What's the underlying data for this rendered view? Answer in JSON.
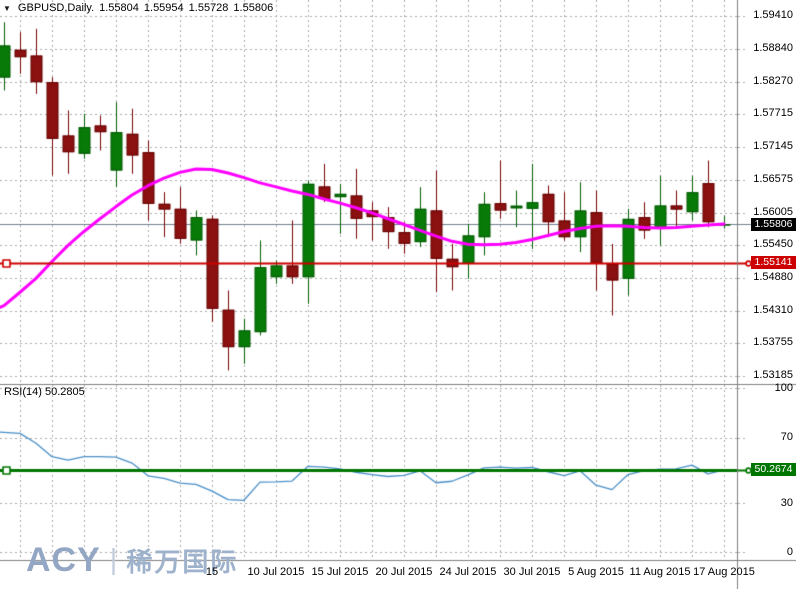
{
  "header": {
    "collapse_icon": "down-triangle",
    "symbol": "GBPUSD,Daily.",
    "open": "1.55804",
    "high": "1.55954",
    "low": "1.55728",
    "close": "1.55806"
  },
  "price_axis": {
    "labels": [
      "1.59410",
      "1.58840",
      "1.58270",
      "1.57715",
      "1.57145",
      "1.56575",
      "1.56005",
      "1.55450",
      "1.54880",
      "1.54310",
      "1.53755",
      "1.53185"
    ],
    "current_price_label": "1.55806",
    "hline_label": "1.55141"
  },
  "rsi_axis": {
    "labels": [
      "100",
      "70",
      "30",
      "0"
    ]
  },
  "time_axis": {
    "labels": [
      "15",
      "10 Jul 2015",
      "15 Jul 2015",
      "20 Jul 2015",
      "24 Jul 2015",
      "30 Jul 2015",
      "5 Aug 2015",
      "11 Aug 2015",
      "17 Aug 2015"
    ]
  },
  "rsi_panel": {
    "title": "RSI(14) 50.2805",
    "level_label": "50.2674"
  },
  "logo": {
    "brand": "ACY",
    "separator": "|",
    "name_cn": "稀万国际"
  },
  "colors": {
    "bull_body": "#077A07",
    "bull_border": "#045804",
    "bull_wick": "#045F04",
    "bear_body": "#8B1010",
    "bear_border": "#640000",
    "bear_wick": "#7A0404",
    "ma_line": "#FF00FF",
    "hline_red": "#CC0000",
    "current_price_line": "#708090",
    "rsi_line": "#4A90C8",
    "rsi_level_green": "#007500",
    "grid": "#ABABAB",
    "separator": "#808080"
  },
  "chart_data": [
    {
      "type": "candlestick",
      "title": "GBPUSD,Daily.",
      "ohlc_display": {
        "open": 1.55804,
        "high": 1.55954,
        "low": 1.55728,
        "close": 1.55806
      },
      "ylim": [
        1.53036,
        1.59669
      ],
      "y_ticks": [
        1.5941,
        1.5884,
        1.5827,
        1.57715,
        1.57145,
        1.56575,
        1.56005,
        1.5545,
        1.5488,
        1.5431,
        1.53755,
        1.53185
      ],
      "x_tick_labels": [
        "15",
        "10 Jul 2015",
        "15 Jul 2015",
        "20 Jul 2015",
        "24 Jul 2015",
        "30 Jul 2015",
        "5 Aug 2015",
        "11 Aug 2015",
        "17 Aug 2015"
      ],
      "x_tick_indices": [
        13,
        17,
        21,
        25,
        29,
        33,
        37,
        41,
        45
      ],
      "candles": [
        [
          1.58339,
          1.59294,
          1.58115,
          1.58892
        ],
        [
          1.58818,
          1.59122,
          1.58403,
          1.5869
        ],
        [
          1.58718,
          1.5918,
          1.58057,
          1.58258
        ],
        [
          1.58258,
          1.58344,
          1.56647,
          1.5728
        ],
        [
          1.57337,
          1.5777,
          1.56676,
          1.57049
        ],
        [
          1.57022,
          1.57712,
          1.56936,
          1.57481
        ],
        [
          1.5751,
          1.57683,
          1.57079,
          1.57395
        ],
        [
          1.56733,
          1.57912,
          1.56445,
          1.57395
        ],
        [
          1.57367,
          1.57799,
          1.56676,
          1.56993
        ],
        [
          1.57049,
          1.57251,
          1.5587,
          1.56158
        ],
        [
          1.56158,
          1.5636,
          1.55583,
          1.5606
        ],
        [
          1.56072,
          1.56446,
          1.55468,
          1.55554
        ],
        [
          1.55525,
          1.56043,
          1.55266,
          1.55928
        ],
        [
          1.55899,
          1.55957,
          1.54114,
          1.54345
        ],
        [
          1.54328,
          1.54661,
          1.5328,
          1.53682
        ],
        [
          1.53682,
          1.54173,
          1.53395,
          1.53971
        ],
        [
          1.53941,
          1.55525,
          1.53884,
          1.55063
        ],
        [
          1.5489,
          1.55179,
          1.54776,
          1.55092
        ],
        [
          1.55092,
          1.5587,
          1.54776,
          1.5489
        ],
        [
          1.5489,
          1.5656,
          1.54431,
          1.56503
        ],
        [
          1.56457,
          1.56848,
          1.56187,
          1.56244
        ],
        [
          1.56273,
          1.56503,
          1.5564,
          1.5633
        ],
        [
          1.56301,
          1.56762,
          1.55554,
          1.55899
        ],
        [
          1.56043,
          1.56187,
          1.55525,
          1.55928
        ],
        [
          1.55928,
          1.561,
          1.55381,
          1.55669
        ],
        [
          1.55669,
          1.55841,
          1.55295,
          1.55468
        ],
        [
          1.55496,
          1.56446,
          1.5541,
          1.56072
        ],
        [
          1.56043,
          1.56733,
          1.54632,
          1.55208
        ],
        [
          1.55208,
          1.55468,
          1.54661,
          1.55063
        ],
        [
          1.55122,
          1.55813,
          1.54863,
          1.55611
        ],
        [
          1.55581,
          1.56358,
          1.55265,
          1.56157
        ],
        [
          1.56168,
          1.56905,
          1.55898,
          1.56042
        ],
        [
          1.5608,
          1.56387,
          1.55754,
          1.56125
        ],
        [
          1.56071,
          1.56848,
          1.5538,
          1.56185
        ],
        [
          1.5633,
          1.56474,
          1.55581,
          1.5584
        ],
        [
          1.55869,
          1.56358,
          1.55524,
          1.55581
        ],
        [
          1.55581,
          1.56531,
          1.55322,
          1.56042
        ],
        [
          1.56013,
          1.56387,
          1.54661,
          1.55122
        ],
        [
          1.55122,
          1.55466,
          1.54229,
          1.54834
        ],
        [
          1.54863,
          1.56071,
          1.54575,
          1.55898
        ],
        [
          1.55927,
          1.56185,
          1.55552,
          1.55697
        ],
        [
          1.55726,
          1.56646,
          1.55437,
          1.56128
        ],
        [
          1.56128,
          1.56387,
          1.55754,
          1.56059
        ],
        [
          1.56013,
          1.56646,
          1.55869,
          1.56358
        ],
        [
          1.56514,
          1.56905,
          1.55754,
          1.5584
        ],
        [
          1.55804,
          1.55954,
          1.55728,
          1.55806
        ]
      ],
      "ma": {
        "name": "MA",
        "color": "#FF00FF",
        "lead_in": 1.5437,
        "values": [
          1.544,
          1.5463,
          1.5487,
          1.5516,
          1.5544,
          1.5568,
          1.559,
          1.5611,
          1.5631,
          1.5647,
          1.566,
          1.567,
          1.5676,
          1.5675,
          1.5669,
          1.5661,
          1.5652,
          1.5645,
          1.5638,
          1.5632,
          1.5624,
          1.5617,
          1.5609,
          1.56,
          1.559,
          1.558,
          1.557,
          1.556,
          1.5551,
          1.5546,
          1.5545,
          1.5546,
          1.5549,
          1.5554,
          1.5561,
          1.5568,
          1.5573,
          1.5577,
          1.5578,
          1.5577,
          1.5575,
          1.5574,
          1.5575,
          1.5577,
          1.5579,
          1.5581
        ]
      },
      "hlines": [
        {
          "value": 1.55141,
          "label": "1.55141",
          "color": "#CC0000"
        },
        {
          "value": 1.55806,
          "label": "1.55806",
          "color": "#708090",
          "box_color": "#000000"
        }
      ]
    },
    {
      "type": "line",
      "name": "RSI(14)",
      "current_value": 50.2805,
      "color": "#4A90C8",
      "ylim": [
        0,
        100
      ],
      "y_ticks": [
        100,
        70,
        30,
        0
      ],
      "level": {
        "value": 50.2674,
        "label": "50.2674",
        "color": "#007500"
      },
      "lead_in": 73.4,
      "values": [
        73.2,
        72.6,
        66.6,
        58.4,
        56.3,
        58.4,
        58.4,
        58.1,
        54.5,
        46.7,
        45.2,
        42.3,
        41.5,
        37.4,
        32.2,
        31.8,
        42.9,
        43.0,
        43.5,
        52.5,
        52.0,
        51.0,
        48.9,
        47.5,
        46.3,
        47.0,
        49.8,
        42.5,
        43.4,
        47.3,
        51.6,
        52.0,
        51.4,
        51.8,
        49.2,
        46.9,
        49.8,
        41.0,
        38.3,
        47.5,
        49.9,
        50.8,
        50.9,
        53.2,
        47.9,
        50.28
      ]
    }
  ]
}
